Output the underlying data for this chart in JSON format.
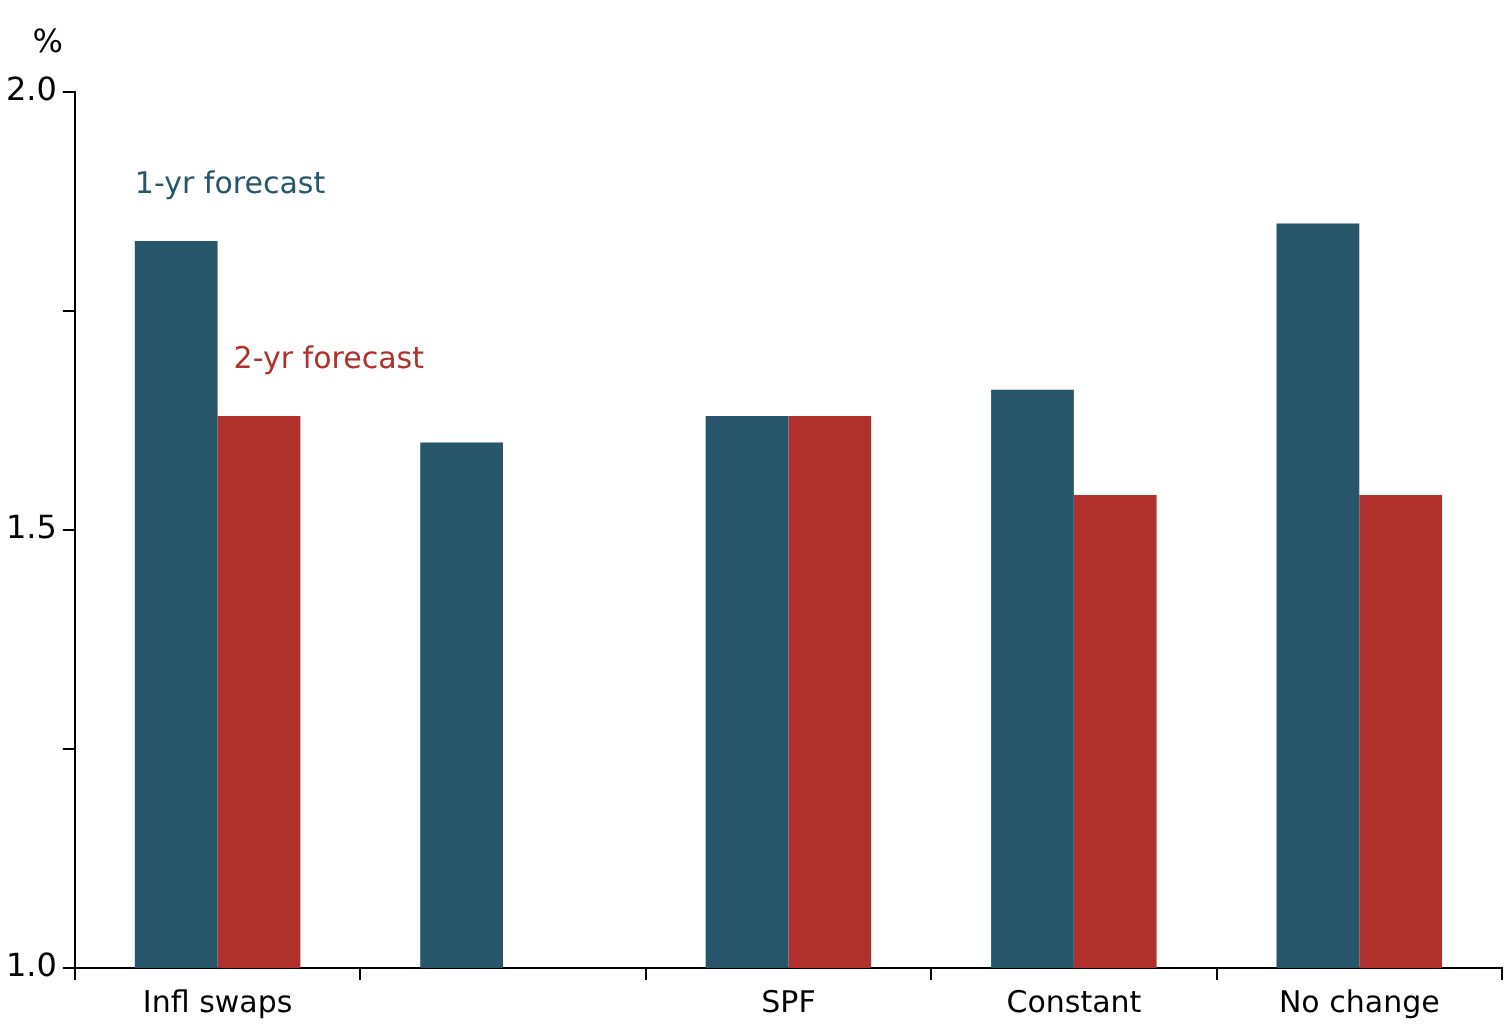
{
  "chart_data": {
    "type": "bar",
    "ylabel": "%",
    "categories": [
      "Infl swaps",
      null,
      "SPF",
      "Constant",
      "No change"
    ],
    "series": [
      {
        "name": "1-yr forecast",
        "color": "#27566a",
        "values": [
          1.83,
          1.6,
          1.63,
          1.66,
          1.85
        ]
      },
      {
        "name": "2-yr forecast",
        "color": "#b0312c",
        "values": [
          1.63,
          null,
          1.63,
          1.54,
          1.54
        ]
      }
    ],
    "ylim": [
      1.0,
      2.0
    ],
    "yticks": [
      {
        "value": 1.0,
        "label": "1.0"
      },
      {
        "value": 1.25,
        "label": null
      },
      {
        "value": 1.5,
        "label": "1.5"
      },
      {
        "value": 1.75,
        "label": null
      },
      {
        "value": 2.0,
        "label": "2.0"
      }
    ],
    "grid": false,
    "legend": false
  }
}
